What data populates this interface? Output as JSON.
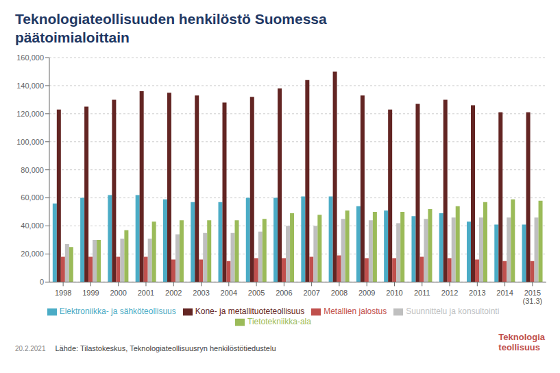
{
  "chart_data": {
    "type": "bar",
    "title": "Teknologiateollisuuden henkilöstö Suomessa",
    "subtitle": "päätoimialoittain",
    "categories": [
      "1998",
      "1999",
      "2000",
      "2001",
      "2002",
      "2003",
      "2004",
      "2005",
      "2006",
      "2007",
      "2008",
      "2009",
      "2010",
      "2011",
      "2012",
      "2013",
      "2014",
      "2015\n(31.3)"
    ],
    "series": [
      {
        "name": "Elektroniikka- ja sähköteollisuus",
        "color": "#4BACC6",
        "values": [
          56000,
          60000,
          62000,
          62000,
          59000,
          57000,
          57000,
          60000,
          60000,
          61000,
          61000,
          54000,
          51000,
          47000,
          49000,
          43000,
          41000,
          41000
        ]
      },
      {
        "name": "Kone- ja metallituoteteollisuus",
        "color": "#632523",
        "values": [
          123000,
          125000,
          130000,
          136000,
          135000,
          133000,
          128000,
          132000,
          138000,
          144000,
          150000,
          133000,
          123000,
          127000,
          130000,
          126000,
          121000,
          121000
        ]
      },
      {
        "name": "Metallien jalostus",
        "color": "#C0504D",
        "values": [
          18000,
          18000,
          18000,
          18000,
          16000,
          16000,
          15000,
          17000,
          17000,
          18000,
          19000,
          17000,
          17000,
          18000,
          17000,
          16000,
          15000,
          15000
        ]
      },
      {
        "name": "Suunnittelu ja konsultointi",
        "color": "#BFBFBF",
        "values": [
          27000,
          30000,
          31000,
          31000,
          34000,
          35000,
          35000,
          36000,
          40000,
          40000,
          45000,
          44000,
          42000,
          45000,
          46000,
          46000,
          46000,
          46000
        ]
      },
      {
        "name": "Tietotekniikka-ala",
        "color": "#9BBB59",
        "values": [
          25000,
          30000,
          37000,
          43000,
          44000,
          44000,
          44000,
          45000,
          49000,
          48000,
          51000,
          50000,
          50000,
          52000,
          54000,
          57000,
          59000,
          58000
        ]
      }
    ],
    "ylim": [
      0,
      160000
    ],
    "yticks": [
      0,
      {
        "value": 20000,
        "label": "20,000"
      },
      {
        "value": 40000,
        "label": "40,000"
      },
      {
        "value": 60000,
        "label": "60,000"
      },
      {
        "value": 80000,
        "label": "80,000"
      },
      {
        "value": 100000,
        "label": "100,000"
      },
      {
        "value": 120000,
        "label": "120,000"
      },
      {
        "value": 140000,
        "label": "140,000"
      },
      {
        "value": 160000,
        "label": "160,000"
      }
    ],
    "grid": true,
    "legend": "bottom",
    "annotations": [
      "20.2.2021",
      "Lähde: Tilastokeskus, Teknologiateollisuusryn henkilöstötiedustelu",
      "Teknologia",
      "teollisuus"
    ]
  }
}
